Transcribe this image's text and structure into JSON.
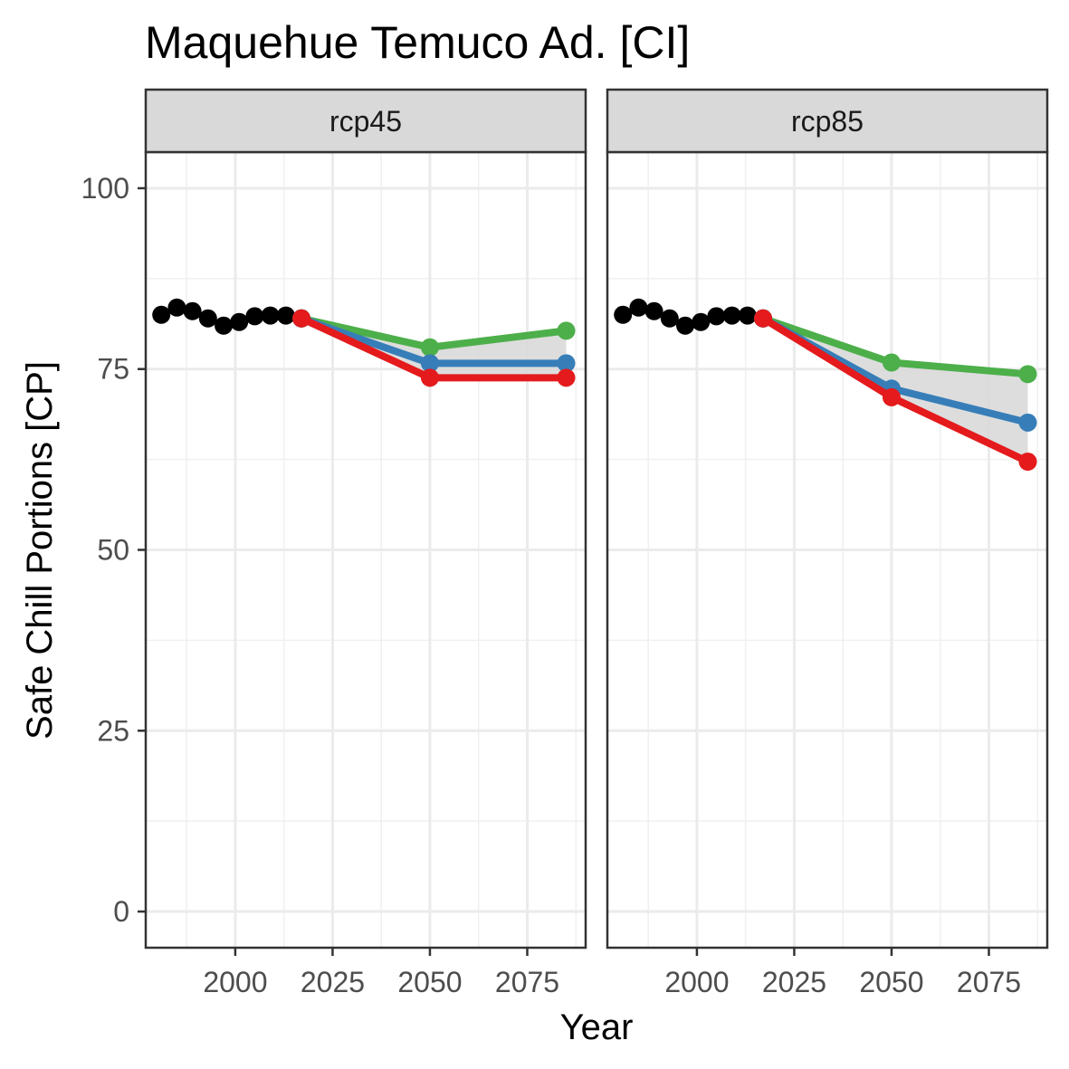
{
  "chart_data": {
    "type": "line",
    "title": "Maquehue Temuco Ad. [CI]",
    "xlabel": "Year",
    "ylabel": "Safe Chill Portions [CP]",
    "xlim": [
      1977,
      2090
    ],
    "ylim": [
      -5,
      105
    ],
    "x_ticks": [
      2000,
      2025,
      2050,
      2075
    ],
    "y_ticks": [
      0,
      25,
      50,
      75,
      100
    ],
    "grid": true,
    "legend": "none",
    "colors": {
      "historic": "#000000",
      "low": "#e41a1c",
      "mid": "#377eb8",
      "high": "#4daf4a",
      "band": "#d9d9d9"
    },
    "panels": [
      {
        "label": "rcp45",
        "historic": {
          "x": [
            1981,
            1985,
            1989,
            1993,
            1997,
            2001,
            2005,
            2009,
            2013,
            2017
          ],
          "y": [
            82.5,
            83.5,
            83.0,
            82.0,
            81.0,
            81.5,
            82.3,
            82.4,
            82.4,
            82.0
          ]
        },
        "series": [
          {
            "x": [
              2017,
              2050,
              2085
            ],
            "y": [
              82.0,
              78.0,
              80.3
            ]
          },
          {
            "x": [
              2017,
              2050,
              2085
            ],
            "y": [
              82.0,
              75.8,
              75.8
            ]
          },
          {
            "x": [
              2017,
              2050,
              2085
            ],
            "y": [
              82.0,
              73.8,
              73.8
            ]
          }
        ]
      },
      {
        "label": "rcp85",
        "historic": {
          "x": [
            1981,
            1985,
            1989,
            1993,
            1997,
            2001,
            2005,
            2009,
            2013,
            2017
          ],
          "y": [
            82.5,
            83.5,
            83.0,
            82.0,
            81.0,
            81.5,
            82.3,
            82.4,
            82.4,
            82.0
          ]
        },
        "series": [
          {
            "x": [
              2017,
              2050,
              2085
            ],
            "y": [
              82.0,
              75.9,
              74.3
            ]
          },
          {
            "x": [
              2017,
              2050,
              2085
            ],
            "y": [
              82.0,
              72.3,
              67.6
            ]
          },
          {
            "x": [
              2017,
              2050,
              2085
            ],
            "y": [
              82.0,
              71.1,
              62.2
            ]
          }
        ]
      }
    ]
  }
}
